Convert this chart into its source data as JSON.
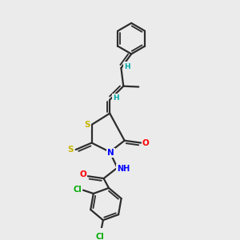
{
  "background_color": "#ebebeb",
  "bond_color": "#2d2d2d",
  "atom_colors": {
    "S": "#c8b400",
    "N": "#0000ff",
    "O": "#ff0000",
    "Cl": "#00aa00",
    "H": "#00aaaa",
    "C": "#2d2d2d"
  },
  "lw": 1.6,
  "fs": 7.0
}
